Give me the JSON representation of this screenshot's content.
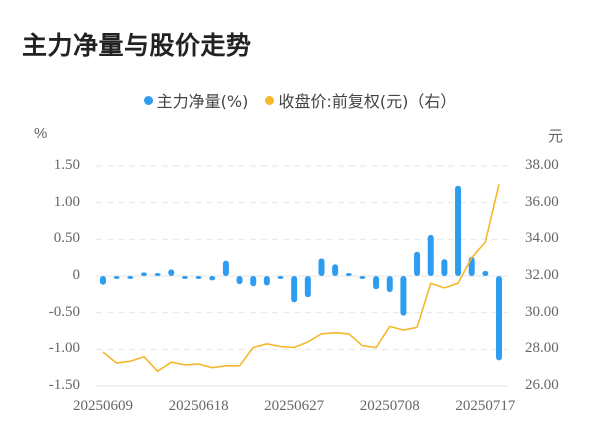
{
  "title": "主力净量与股价走势",
  "legend": [
    {
      "label": "主力净量(%)",
      "color": "#2e9cf0"
    },
    {
      "label": "收盘价:前复权(元)（右）",
      "color": "#f6b72a"
    }
  ],
  "axes": {
    "left_unit": "%",
    "right_unit": "元",
    "left_ticks": [
      "1.50",
      "1.00",
      "0.50",
      "0",
      "-0.50",
      "-1.00",
      "-1.50"
    ],
    "right_ticks": [
      "38.00",
      "36.00",
      "34.00",
      "32.00",
      "30.00",
      "28.00",
      "26.00"
    ],
    "x_labels": [
      "20250609",
      "20250618",
      "20250627",
      "20250708",
      "20250717"
    ]
  },
  "chart_data": {
    "type": "bar+line",
    "title": "主力净量与股价走势",
    "x_label_indices": [
      0,
      7,
      14,
      21,
      28
    ],
    "x_tick_labels": [
      "20250609",
      "20250618",
      "20250627",
      "20250708",
      "20250717"
    ],
    "series": [
      {
        "name": "主力净量(%)",
        "type": "bar",
        "axis": "left",
        "color": "#2e9cf0",
        "values": [
          -0.12,
          -0.03,
          -0.04,
          0.05,
          0.03,
          0.09,
          -0.03,
          -0.02,
          -0.06,
          0.21,
          -0.11,
          -0.14,
          -0.13,
          -0.01,
          -0.36,
          -0.29,
          0.24,
          0.16,
          0.01,
          -0.02,
          -0.18,
          -0.22,
          -0.54,
          0.33,
          0.56,
          0.23,
          1.23,
          0.26,
          0.07,
          -1.15
        ]
      },
      {
        "name": "收盘价:前复权(元)（右）",
        "type": "line",
        "axis": "right",
        "color": "#f6b72a",
        "values": [
          27.85,
          27.25,
          27.35,
          27.6,
          26.8,
          27.3,
          27.15,
          27.2,
          27.0,
          27.1,
          27.1,
          28.1,
          28.3,
          28.15,
          28.1,
          28.4,
          28.85,
          28.9,
          28.85,
          28.2,
          28.1,
          29.25,
          29.05,
          29.2,
          31.6,
          31.35,
          31.6,
          33.0,
          33.85,
          37.0
        ]
      }
    ],
    "ylim_left": [
      -1.5,
      1.5
    ],
    "ylim_right": [
      26,
      38
    ],
    "ylabel_left": "%",
    "ylabel_right": "元",
    "grid": true,
    "legend_position": "top"
  }
}
